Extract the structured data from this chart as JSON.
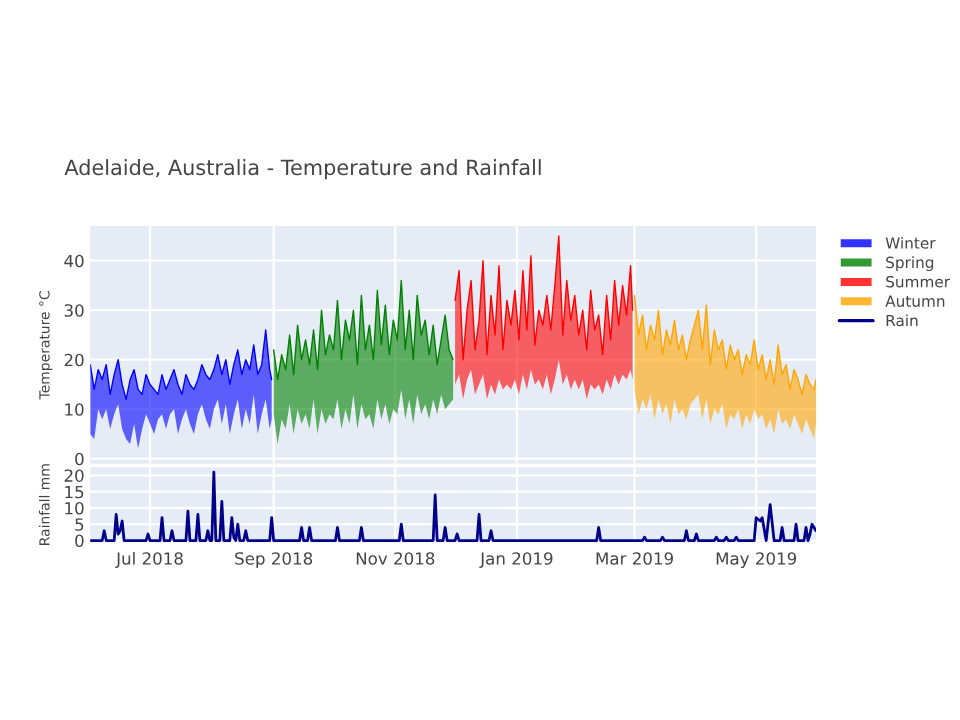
{
  "chart_data": [
    {
      "type": "line",
      "title": "Adelaide, Australia - Temperature and Rainfall",
      "ylabel": "Temperature °C",
      "xlim": [
        "2018-06-01",
        "2019-05-31"
      ],
      "ylim": [
        -1,
        47
      ],
      "yticks": [
        0,
        10,
        20,
        30,
        40
      ],
      "tick_labels": "y",
      "grid": true,
      "legend": "right",
      "series": [
        {
          "name": "Winter",
          "color": "#0000ff",
          "x": [
            "2018-06-01",
            "2018-06-03",
            "2018-06-05",
            "2018-06-07",
            "2018-06-09",
            "2018-06-11",
            "2018-06-13",
            "2018-06-15",
            "2018-06-17",
            "2018-06-19",
            "2018-06-21",
            "2018-06-23",
            "2018-06-25",
            "2018-06-27",
            "2018-06-29",
            "2018-07-01",
            "2018-07-03",
            "2018-07-05",
            "2018-07-07",
            "2018-07-09",
            "2018-07-11",
            "2018-07-13",
            "2018-07-15",
            "2018-07-17",
            "2018-07-19",
            "2018-07-21",
            "2018-07-23",
            "2018-07-25",
            "2018-07-27",
            "2018-07-29",
            "2018-07-31",
            "2018-08-02",
            "2018-08-04",
            "2018-08-06",
            "2018-08-08",
            "2018-08-10",
            "2018-08-12",
            "2018-08-14",
            "2018-08-16",
            "2018-08-18",
            "2018-08-20",
            "2018-08-22",
            "2018-08-24",
            "2018-08-26",
            "2018-08-28",
            "2018-08-30",
            "2018-08-31"
          ],
          "values": [
            19,
            14,
            18,
            16,
            19,
            13,
            17,
            20,
            15,
            12,
            16,
            18,
            14,
            13,
            17,
            15,
            14,
            13,
            17,
            14,
            16,
            18,
            15,
            13,
            17,
            15,
            14,
            16,
            19,
            17,
            16,
            18,
            21,
            17,
            20,
            15,
            19,
            22,
            17,
            20,
            18,
            23,
            17,
            19,
            26,
            18,
            16
          ],
          "upper": [
            19,
            14,
            18,
            16,
            19,
            13,
            17,
            20,
            15,
            12,
            16,
            18,
            14,
            13,
            17,
            15,
            14,
            13,
            17,
            14,
            16,
            18,
            15,
            13,
            17,
            15,
            14,
            16,
            19,
            17,
            16,
            18,
            21,
            17,
            20,
            15,
            19,
            22,
            17,
            20,
            18,
            23,
            17,
            19,
            26,
            18,
            16
          ],
          "lower": [
            5,
            4,
            10,
            8,
            10,
            6,
            9,
            11,
            6,
            4,
            3,
            7,
            2,
            6,
            9,
            7,
            5,
            8,
            9,
            6,
            9,
            10,
            5,
            8,
            10,
            7,
            5,
            9,
            11,
            8,
            6,
            10,
            12,
            7,
            11,
            5,
            9,
            12,
            6,
            10,
            7,
            13,
            5,
            9,
            12,
            6,
            8
          ]
        },
        {
          "name": "Spring",
          "color": "#008000",
          "x": [
            "2018-09-01",
            "2018-09-03",
            "2018-09-05",
            "2018-09-07",
            "2018-09-09",
            "2018-09-11",
            "2018-09-13",
            "2018-09-15",
            "2018-09-17",
            "2018-09-19",
            "2018-09-21",
            "2018-09-23",
            "2018-09-25",
            "2018-09-27",
            "2018-09-29",
            "2018-10-01",
            "2018-10-03",
            "2018-10-05",
            "2018-10-07",
            "2018-10-09",
            "2018-10-11",
            "2018-10-13",
            "2018-10-15",
            "2018-10-17",
            "2018-10-19",
            "2018-10-21",
            "2018-10-23",
            "2018-10-25",
            "2018-10-27",
            "2018-10-29",
            "2018-10-31",
            "2018-11-02",
            "2018-11-04",
            "2018-11-06",
            "2018-11-08",
            "2018-11-10",
            "2018-11-12",
            "2018-11-14",
            "2018-11-16",
            "2018-11-18",
            "2018-11-20",
            "2018-11-22",
            "2018-11-24",
            "2018-11-26",
            "2018-11-28",
            "2018-11-30"
          ],
          "values": [
            22,
            16,
            21,
            18,
            25,
            17,
            27,
            20,
            24,
            19,
            26,
            18,
            30,
            21,
            25,
            22,
            32,
            20,
            28,
            24,
            30,
            19,
            33,
            22,
            27,
            20,
            34,
            23,
            31,
            21,
            28,
            24,
            36,
            22,
            30,
            20,
            33,
            25,
            28,
            21,
            27,
            19,
            24,
            29,
            22,
            20
          ],
          "upper": [
            22,
            16,
            21,
            18,
            25,
            17,
            27,
            20,
            24,
            19,
            26,
            18,
            30,
            21,
            25,
            22,
            32,
            20,
            28,
            24,
            30,
            19,
            33,
            22,
            27,
            20,
            34,
            23,
            31,
            21,
            28,
            24,
            36,
            22,
            30,
            20,
            33,
            25,
            28,
            21,
            27,
            19,
            24,
            29,
            22,
            20
          ],
          "lower": [
            9,
            3,
            8,
            6,
            11,
            5,
            10,
            7,
            9,
            6,
            12,
            5,
            10,
            7,
            9,
            8,
            12,
            6,
            10,
            7,
            13,
            6,
            11,
            8,
            9,
            6,
            12,
            8,
            11,
            7,
            10,
            9,
            14,
            8,
            12,
            7,
            13,
            9,
            11,
            8,
            12,
            9,
            13,
            10,
            11,
            12
          ]
        },
        {
          "name": "Summer",
          "color": "#ff0000",
          "x": [
            "2018-12-01",
            "2018-12-03",
            "2018-12-05",
            "2018-12-07",
            "2018-12-09",
            "2018-12-11",
            "2018-12-13",
            "2018-12-15",
            "2018-12-17",
            "2018-12-19",
            "2018-12-21",
            "2018-12-23",
            "2018-12-25",
            "2018-12-27",
            "2018-12-29",
            "2018-12-31",
            "2019-01-02",
            "2019-01-04",
            "2019-01-06",
            "2019-01-08",
            "2019-01-10",
            "2019-01-12",
            "2019-01-14",
            "2019-01-16",
            "2019-01-18",
            "2019-01-20",
            "2019-01-22",
            "2019-01-24",
            "2019-01-26",
            "2019-01-28",
            "2019-01-30",
            "2019-02-01",
            "2019-02-03",
            "2019-02-05",
            "2019-02-07",
            "2019-02-09",
            "2019-02-11",
            "2019-02-13",
            "2019-02-15",
            "2019-02-17",
            "2019-02-19",
            "2019-02-21",
            "2019-02-23",
            "2019-02-25",
            "2019-02-27",
            "2019-02-28"
          ],
          "values": [
            32,
            38,
            20,
            30,
            36,
            22,
            28,
            40,
            21,
            33,
            25,
            39,
            22,
            32,
            27,
            34,
            24,
            38,
            26,
            41,
            23,
            30,
            27,
            33,
            26,
            35,
            45,
            25,
            36,
            28,
            33,
            25,
            30,
            22,
            34,
            26,
            29,
            21,
            33,
            24,
            36,
            27,
            35,
            29,
            39,
            30
          ],
          "upper": [
            32,
            38,
            20,
            30,
            36,
            22,
            28,
            40,
            21,
            33,
            25,
            39,
            22,
            32,
            27,
            34,
            24,
            38,
            26,
            41,
            23,
            30,
            27,
            33,
            26,
            35,
            45,
            25,
            36,
            28,
            33,
            25,
            30,
            22,
            34,
            26,
            29,
            21,
            33,
            24,
            36,
            27,
            35,
            29,
            39,
            30
          ],
          "lower": [
            15,
            17,
            12,
            16,
            18,
            13,
            15,
            17,
            12,
            15,
            13,
            16,
            14,
            15,
            14,
            16,
            13,
            17,
            14,
            18,
            15,
            16,
            14,
            17,
            13,
            16,
            20,
            15,
            17,
            14,
            16,
            14,
            16,
            12,
            15,
            14,
            15,
            13,
            16,
            14,
            17,
            15,
            17,
            16,
            18,
            16
          ]
        },
        {
          "name": "Autumn",
          "color": "#ffa500",
          "x": [
            "2019-03-01",
            "2019-03-03",
            "2019-03-05",
            "2019-03-07",
            "2019-03-09",
            "2019-03-11",
            "2019-03-13",
            "2019-03-15",
            "2019-03-17",
            "2019-03-19",
            "2019-03-21",
            "2019-03-23",
            "2019-03-25",
            "2019-03-27",
            "2019-03-29",
            "2019-03-31",
            "2019-04-02",
            "2019-04-04",
            "2019-04-06",
            "2019-04-08",
            "2019-04-10",
            "2019-04-12",
            "2019-04-14",
            "2019-04-16",
            "2019-04-18",
            "2019-04-20",
            "2019-04-22",
            "2019-04-24",
            "2019-04-26",
            "2019-04-28",
            "2019-04-30",
            "2019-05-02",
            "2019-05-04",
            "2019-05-06",
            "2019-05-08",
            "2019-05-10",
            "2019-05-12",
            "2019-05-14",
            "2019-05-16",
            "2019-05-18",
            "2019-05-20",
            "2019-05-22",
            "2019-05-24",
            "2019-05-26",
            "2019-05-28",
            "2019-05-30",
            "2019-05-31"
          ],
          "values": [
            33,
            25,
            29,
            22,
            27,
            24,
            30,
            21,
            26,
            23,
            28,
            22,
            25,
            20,
            24,
            27,
            30,
            22,
            31,
            19,
            26,
            22,
            24,
            18,
            23,
            20,
            22,
            17,
            21,
            19,
            24,
            18,
            21,
            16,
            20,
            15,
            23,
            17,
            19,
            14,
            18,
            16,
            13,
            17,
            15,
            14,
            16
          ],
          "upper": [
            33,
            25,
            29,
            22,
            27,
            24,
            30,
            21,
            26,
            23,
            28,
            22,
            25,
            20,
            24,
            27,
            30,
            22,
            31,
            19,
            26,
            22,
            24,
            18,
            23,
            20,
            22,
            17,
            21,
            19,
            24,
            18,
            21,
            16,
            20,
            15,
            23,
            17,
            19,
            14,
            18,
            16,
            13,
            17,
            15,
            14,
            16
          ],
          "lower": [
            14,
            9,
            12,
            10,
            13,
            8,
            12,
            9,
            11,
            7,
            12,
            9,
            10,
            8,
            11,
            12,
            13,
            8,
            12,
            7,
            10,
            9,
            11,
            6,
            9,
            8,
            10,
            6,
            9,
            7,
            10,
            8,
            9,
            6,
            8,
            5,
            10,
            7,
            8,
            6,
            9,
            7,
            5,
            8,
            6,
            4,
            7
          ]
        }
      ]
    },
    {
      "type": "line",
      "ylabel": "Rainfall mm",
      "xlim": [
        "2018-06-01",
        "2019-05-31"
      ],
      "ylim": [
        -0.5,
        22.5
      ],
      "yticks": [
        0,
        5,
        10,
        15,
        20
      ],
      "xticks": [
        {
          "value": "2018-07-01",
          "label": "Jul 2018"
        },
        {
          "value": "2018-09-01",
          "label": "Sep 2018"
        },
        {
          "value": "2018-11-01",
          "label": "Nov 2018"
        },
        {
          "value": "2019-01-01",
          "label": "Jan 2019"
        },
        {
          "value": "2019-03-01",
          "label": "Mar 2019"
        },
        {
          "value": "2019-05-01",
          "label": "May 2019"
        }
      ],
      "grid": true,
      "legend": "right",
      "series": [
        {
          "name": "Rain",
          "color": "#00008b",
          "x": [
            "2018-06-01",
            "2018-06-07",
            "2018-06-08",
            "2018-06-09",
            "2018-06-13",
            "2018-06-14",
            "2018-06-15",
            "2018-06-16",
            "2018-06-17",
            "2018-06-18",
            "2018-06-29",
            "2018-06-30",
            "2018-07-01",
            "2018-07-06",
            "2018-07-07",
            "2018-07-08",
            "2018-07-11",
            "2018-07-12",
            "2018-07-13",
            "2018-07-19",
            "2018-07-20",
            "2018-07-21",
            "2018-07-24",
            "2018-07-25",
            "2018-07-26",
            "2018-07-29",
            "2018-07-30",
            "2018-07-31",
            "2018-08-01",
            "2018-08-02",
            "2018-08-03",
            "2018-08-05",
            "2018-08-06",
            "2018-08-07",
            "2018-08-10",
            "2018-08-11",
            "2018-08-12",
            "2018-08-13",
            "2018-08-14",
            "2018-08-15",
            "2018-08-17",
            "2018-08-18",
            "2018-08-19",
            "2018-08-30",
            "2018-08-31",
            "2018-09-01",
            "2018-09-14",
            "2018-09-15",
            "2018-09-16",
            "2018-09-18",
            "2018-09-19",
            "2018-09-20",
            "2018-10-02",
            "2018-10-03",
            "2018-10-04",
            "2018-10-14",
            "2018-10-15",
            "2018-10-16",
            "2018-11-03",
            "2018-11-04",
            "2018-11-05",
            "2018-11-20",
            "2018-11-21",
            "2018-11-22",
            "2018-11-25",
            "2018-11-26",
            "2018-11-27",
            "2018-12-01",
            "2018-12-02",
            "2018-12-03",
            "2018-12-12",
            "2018-12-13",
            "2018-12-14",
            "2018-12-18",
            "2018-12-19",
            "2018-12-20",
            "2019-02-10",
            "2019-02-11",
            "2019-02-12",
            "2019-03-05",
            "2019-03-06",
            "2019-03-07",
            "2019-03-14",
            "2019-03-15",
            "2019-03-16",
            "2019-03-26",
            "2019-03-27",
            "2019-03-28",
            "2019-03-31",
            "2019-04-01",
            "2019-04-02",
            "2019-04-10",
            "2019-04-11",
            "2019-04-12",
            "2019-04-15",
            "2019-04-16",
            "2019-04-17",
            "2019-04-20",
            "2019-04-21",
            "2019-04-22",
            "2019-04-30",
            "2019-05-01",
            "2019-05-03",
            "2019-05-04",
            "2019-05-06",
            "2019-05-08",
            "2019-05-10",
            "2019-05-13",
            "2019-05-14",
            "2019-05-15",
            "2019-05-20",
            "2019-05-21",
            "2019-05-22",
            "2019-05-25",
            "2019-05-26",
            "2019-05-27",
            "2019-05-28",
            "2019-05-29",
            "2019-05-31"
          ],
          "values": [
            0,
            0,
            3,
            0,
            0,
            8,
            2,
            3,
            6,
            0,
            0,
            2,
            0,
            0,
            7,
            0,
            0,
            3,
            0,
            0,
            9,
            0,
            0,
            8,
            0,
            0,
            3,
            0,
            0,
            21,
            0,
            0,
            12,
            0,
            0,
            7,
            1,
            0,
            5,
            0,
            0,
            3,
            0,
            0,
            7,
            0,
            0,
            4,
            0,
            0,
            4,
            0,
            0,
            4,
            0,
            0,
            4,
            0,
            0,
            5,
            0,
            0,
            14,
            0,
            0,
            4,
            0,
            0,
            2,
            0,
            0,
            8,
            0,
            0,
            3,
            0,
            0,
            4,
            0,
            0,
            1,
            0,
            0,
            1,
            0,
            0,
            3,
            0,
            0,
            2,
            0,
            0,
            1,
            0,
            0,
            1,
            0,
            0,
            1,
            0,
            0,
            7,
            6,
            7,
            0,
            11,
            0,
            0,
            4,
            0,
            0,
            5,
            0,
            0,
            4,
            0,
            2,
            5,
            3
          ]
        }
      ]
    }
  ]
}
